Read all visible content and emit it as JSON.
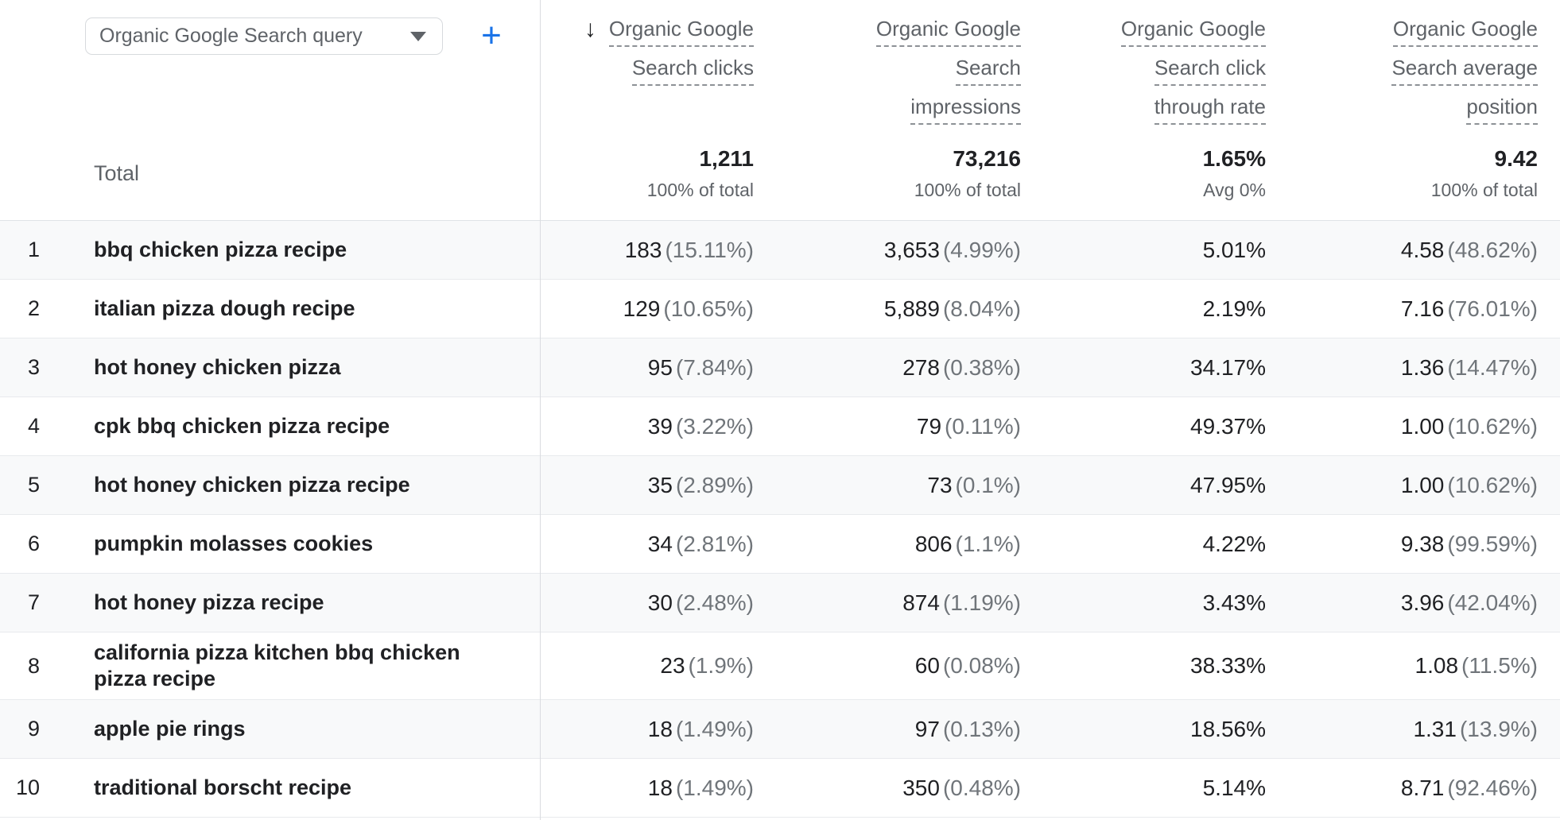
{
  "colors": {
    "accent_blue": "#1a73e8",
    "stripe": "#f8f9fa",
    "divider": "#dadce0"
  },
  "controls": {
    "dimension_selector": {
      "value": "Organic Google Search query"
    },
    "add_button_label": "+"
  },
  "table": {
    "sort_icon": "↓",
    "columns": [
      {
        "id": "clicks",
        "lines": [
          "Organic Google",
          "Search clicks"
        ]
      },
      {
        "id": "impressions",
        "lines": [
          "Organic Google",
          "Search",
          "impressions"
        ]
      },
      {
        "id": "ctr",
        "lines": [
          "Organic Google",
          "Search click",
          "through rate"
        ]
      },
      {
        "id": "avg_position",
        "lines": [
          "Organic Google",
          "Search average",
          "position"
        ]
      }
    ],
    "total": {
      "label": "Total",
      "clicks": {
        "value": "1,211",
        "sub": "100% of total"
      },
      "impressions": {
        "value": "73,216",
        "sub": "100% of total"
      },
      "ctr": {
        "value": "1.65%",
        "sub": "Avg 0%"
      },
      "avg_position": {
        "value": "9.42",
        "sub": "100% of total"
      }
    },
    "rows": [
      {
        "rank": "1",
        "query": "bbq chicken pizza recipe",
        "clicks": "183",
        "clicks_pct": "(15.11%)",
        "impressions": "3,653",
        "impressions_pct": "(4.99%)",
        "ctr": "5.01%",
        "avg_position": "4.58",
        "avg_position_pct": "(48.62%)"
      },
      {
        "rank": "2",
        "query": "italian pizza dough recipe",
        "clicks": "129",
        "clicks_pct": "(10.65%)",
        "impressions": "5,889",
        "impressions_pct": "(8.04%)",
        "ctr": "2.19%",
        "avg_position": "7.16",
        "avg_position_pct": "(76.01%)"
      },
      {
        "rank": "3",
        "query": "hot honey chicken pizza",
        "clicks": "95",
        "clicks_pct": "(7.84%)",
        "impressions": "278",
        "impressions_pct": "(0.38%)",
        "ctr": "34.17%",
        "avg_position": "1.36",
        "avg_position_pct": "(14.47%)"
      },
      {
        "rank": "4",
        "query": "cpk bbq chicken pizza recipe",
        "clicks": "39",
        "clicks_pct": "(3.22%)",
        "impressions": "79",
        "impressions_pct": "(0.11%)",
        "ctr": "49.37%",
        "avg_position": "1.00",
        "avg_position_pct": "(10.62%)"
      },
      {
        "rank": "5",
        "query": "hot honey chicken pizza recipe",
        "clicks": "35",
        "clicks_pct": "(2.89%)",
        "impressions": "73",
        "impressions_pct": "(0.1%)",
        "ctr": "47.95%",
        "avg_position": "1.00",
        "avg_position_pct": "(10.62%)"
      },
      {
        "rank": "6",
        "query": "pumpkin molasses cookies",
        "clicks": "34",
        "clicks_pct": "(2.81%)",
        "impressions": "806",
        "impressions_pct": "(1.1%)",
        "ctr": "4.22%",
        "avg_position": "9.38",
        "avg_position_pct": "(99.59%)"
      },
      {
        "rank": "7",
        "query": "hot honey pizza recipe",
        "clicks": "30",
        "clicks_pct": "(2.48%)",
        "impressions": "874",
        "impressions_pct": "(1.19%)",
        "ctr": "3.43%",
        "avg_position": "3.96",
        "avg_position_pct": "(42.04%)"
      },
      {
        "rank": "8",
        "query": "california pizza kitchen bbq chicken pizza recipe",
        "clicks": "23",
        "clicks_pct": "(1.9%)",
        "impressions": "60",
        "impressions_pct": "(0.08%)",
        "ctr": "38.33%",
        "avg_position": "1.08",
        "avg_position_pct": "(11.5%)"
      },
      {
        "rank": "9",
        "query": "apple pie rings",
        "clicks": "18",
        "clicks_pct": "(1.49%)",
        "impressions": "97",
        "impressions_pct": "(0.13%)",
        "ctr": "18.56%",
        "avg_position": "1.31",
        "avg_position_pct": "(13.9%)"
      },
      {
        "rank": "10",
        "query": "traditional borscht recipe",
        "clicks": "18",
        "clicks_pct": "(1.49%)",
        "impressions": "350",
        "impressions_pct": "(0.48%)",
        "ctr": "5.14%",
        "avg_position": "8.71",
        "avg_position_pct": "(92.46%)"
      }
    ]
  }
}
